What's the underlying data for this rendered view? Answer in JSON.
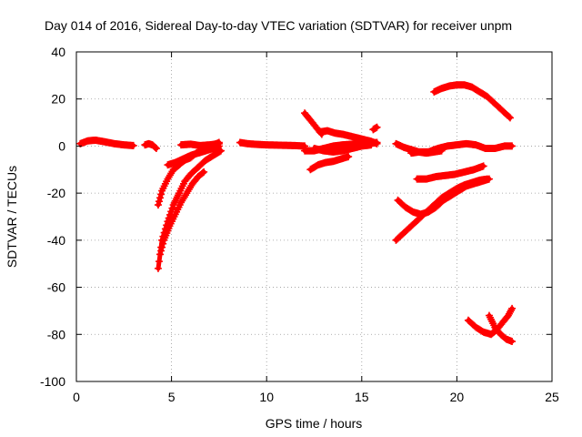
{
  "chart_data": {
    "type": "scatter",
    "title": "Day 014 of 2016, Sidereal Day-to-day VTEC variation (SDTVAR) for receiver unpm",
    "xlabel": "GPS time / hours",
    "ylabel": "SDTVAR / TECUs",
    "xlim": [
      0,
      25
    ],
    "ylim": [
      -100,
      40
    ],
    "xticks": [
      0,
      5,
      10,
      15,
      20,
      25
    ],
    "yticks": [
      -100,
      -80,
      -60,
      -40,
      -20,
      0,
      20,
      40
    ],
    "grid": true,
    "marker": "plus",
    "color": "#ff0000",
    "tracks": [
      {
        "x": [
          0.2,
          0.6,
          1.0,
          1.5,
          2.0,
          2.5,
          3.0
        ],
        "y": [
          1.0,
          2.2,
          2.5,
          1.8,
          1.0,
          0.5,
          0.2
        ]
      },
      {
        "x": [
          3.6,
          3.8,
          4.0,
          4.2
        ],
        "y": [
          0.5,
          1.0,
          0.5,
          -1.0
        ]
      },
      {
        "x": [
          4.3,
          4.5,
          4.8,
          5.1,
          5.4,
          5.7,
          6.0,
          6.3,
          6.6,
          6.9,
          7.2,
          7.5
        ],
        "y": [
          -25,
          -19,
          -14,
          -10,
          -8,
          -6,
          -5,
          -3,
          -2,
          -1,
          0.5,
          1.5
        ]
      },
      {
        "x": [
          4.3,
          4.5,
          4.8,
          5.1,
          5.4,
          5.7,
          6.0,
          6.4,
          6.8,
          7.2,
          7.6
        ],
        "y": [
          -52,
          -40,
          -32,
          -25,
          -20,
          -15,
          -12,
          -9,
          -6,
          -4,
          -2
        ]
      },
      {
        "x": [
          4.4,
          4.6,
          4.9,
          5.2,
          5.5,
          5.8,
          6.1,
          6.4,
          6.7
        ],
        "y": [
          -46,
          -40,
          -34,
          -29,
          -24,
          -20,
          -16,
          -13,
          -11
        ]
      },
      {
        "x": [
          4.8,
          5.2,
          5.6,
          6.0,
          6.4,
          6.8,
          7.2,
          7.5
        ],
        "y": [
          -8,
          -7,
          -5.5,
          -4,
          -3,
          -2,
          -1,
          0
        ]
      },
      {
        "x": [
          5.5,
          6.0,
          6.5,
          7.0,
          7.5
        ],
        "y": [
          0.5,
          0.8,
          0.2,
          0.5,
          1.0
        ]
      },
      {
        "x": [
          8.6,
          9.0,
          9.5,
          10.0,
          10.5,
          11.0,
          11.5,
          12.0
        ],
        "y": [
          1.5,
          1.0,
          0.7,
          0.5,
          0.4,
          0.3,
          0.2,
          0.0
        ]
      },
      {
        "x": [
          12.0,
          12.3,
          12.6,
          12.9
        ],
        "y": [
          14,
          11,
          8,
          5
        ]
      },
      {
        "x": [
          12.0,
          12.5,
          13.0,
          13.5,
          14.0,
          14.5,
          15.0,
          15.5,
          15.8
        ],
        "y": [
          -2,
          -2,
          -1,
          0,
          0.5,
          0.8,
          1.0,
          1.2,
          1.5
        ]
      },
      {
        "x": [
          12.8,
          13.2,
          13.6,
          14.0,
          14.5,
          15.0,
          15.5,
          15.8
        ],
        "y": [
          6,
          6.5,
          5.5,
          5,
          4,
          3,
          2,
          1
        ]
      },
      {
        "x": [
          12.3,
          12.7,
          13.1,
          13.5,
          13.9,
          14.3
        ],
        "y": [
          -10,
          -8,
          -7,
          -6.5,
          -5.5,
          -4.5
        ]
      },
      {
        "x": [
          12.5,
          13.0,
          13.5,
          14.0,
          14.5,
          15.0,
          15.5
        ],
        "y": [
          -1,
          -2,
          -2.5,
          -2.0,
          -1.0,
          0.0,
          0.5
        ]
      },
      {
        "x": [
          15.6,
          15.8
        ],
        "y": [
          7,
          8
        ]
      },
      {
        "x": [
          16.8,
          17.2,
          17.6,
          18.0,
          18.4,
          18.8,
          19.2
        ],
        "y": [
          1,
          -0.5,
          -1.5,
          -2.5,
          -3,
          -2.5,
          -2
        ]
      },
      {
        "x": [
          17.6,
          18.0,
          18.5,
          19.0,
          19.5,
          20.0,
          20.5,
          21.0,
          21.5,
          22.0,
          22.5,
          22.9
        ],
        "y": [
          -3,
          -2.5,
          -2.5,
          -1,
          0,
          0.5,
          1,
          0.5,
          -1,
          -1,
          0,
          0
        ]
      },
      {
        "x": [
          18.8,
          19.2,
          19.6,
          20.0,
          20.4,
          20.8,
          21.2,
          21.6,
          22.0,
          22.4,
          22.8
        ],
        "y": [
          23,
          24.5,
          25.5,
          26,
          26,
          25,
          23,
          21,
          18,
          15,
          12
        ]
      },
      {
        "x": [
          17.9,
          18.4,
          18.9,
          19.4,
          19.9,
          20.4,
          20.9,
          21.4
        ],
        "y": [
          -14,
          -14,
          -13,
          -12.5,
          -12,
          -11,
          -10,
          -8.5
        ]
      },
      {
        "x": [
          16.9,
          17.3,
          17.7,
          18.1,
          18.5,
          18.9,
          19.3,
          19.7,
          20.1,
          20.5,
          20.9,
          21.3,
          21.7
        ],
        "y": [
          -23,
          -26,
          -28,
          -29,
          -28,
          -26,
          -23,
          -21,
          -19,
          -17,
          -16,
          -15,
          -14
        ]
      },
      {
        "x": [
          16.8,
          17.2,
          17.6,
          18.0,
          18.4,
          18.8,
          19.2,
          19.6,
          20.0,
          20.4,
          20.8,
          21.2,
          21.6
        ],
        "y": [
          -40,
          -37,
          -34,
          -31,
          -28,
          -25,
          -22,
          -20,
          -18,
          -16.5,
          -15.5,
          -14.5,
          -14
        ]
      },
      {
        "x": [
          20.6,
          21.0,
          21.4,
          21.8,
          22.1,
          22.4,
          22.7,
          22.9
        ],
        "y": [
          -74,
          -77,
          -79,
          -80,
          -78,
          -75,
          -72,
          -69
        ]
      },
      {
        "x": [
          21.7,
          22.0,
          22.3,
          22.6,
          22.9
        ],
        "y": [
          -72,
          -77,
          -80,
          -82,
          -83
        ]
      }
    ]
  }
}
